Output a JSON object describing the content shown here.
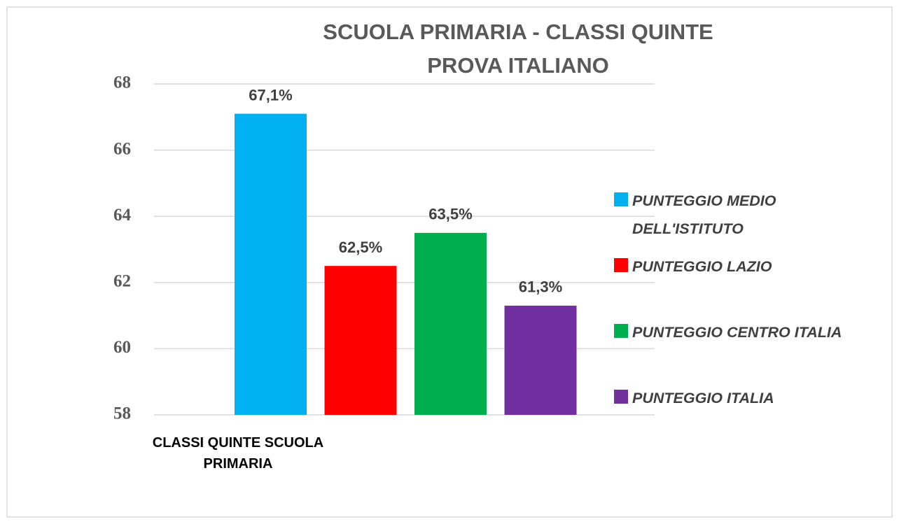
{
  "chart_data": {
    "type": "bar",
    "title": [
      "SCUOLA PRIMARIA - CLASSI QUINTE",
      "PROVA ITALIANO"
    ],
    "categories": [
      "CLASSI  QUINTE SCUOLA PRIMARIA"
    ],
    "series": [
      {
        "name": "PUNTEGGIO MEDIO DELL'ISTITUTO",
        "color": "#00b0f0",
        "values": [
          67.1
        ],
        "value_labels": [
          "67,1%"
        ]
      },
      {
        "name": "PUNTEGGIO LAZIO",
        "color": "#ff0000",
        "values": [
          62.5
        ],
        "value_labels": [
          "62,5%"
        ]
      },
      {
        "name": "PUNTEGGIO CENTRO ITALIA",
        "color": "#00b050",
        "values": [
          63.5
        ],
        "value_labels": [
          "63,5%"
        ]
      },
      {
        "name": "PUNTEGGIO ITALIA",
        "color": "#7030a0",
        "values": [
          61.3
        ],
        "value_labels": [
          "61,3%"
        ]
      }
    ],
    "ylim": [
      58,
      68
    ],
    "yticks": [
      58,
      60,
      62,
      64,
      66,
      68
    ],
    "grid": true,
    "legend": "right"
  }
}
